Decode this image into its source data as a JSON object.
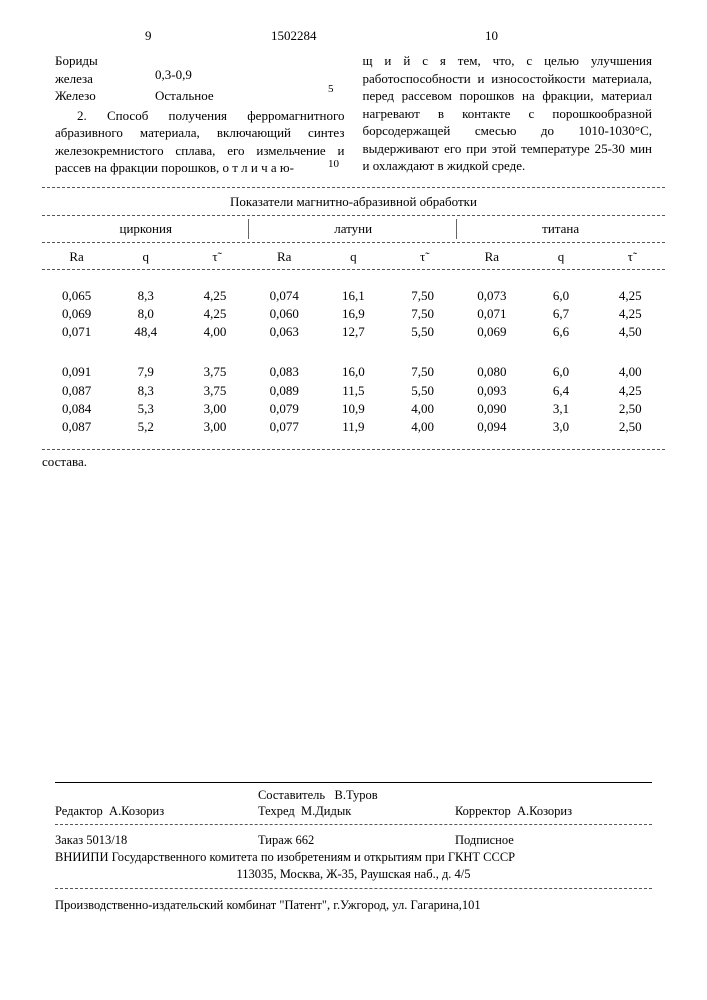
{
  "page": {
    "num_left": "9",
    "doc_number": "1502284",
    "num_right": "10"
  },
  "margin": {
    "n5": "5",
    "n10": "10"
  },
  "left_col": {
    "l1a": "Бориды",
    "l1b": "железа",
    "l1c": "0,3-0,9",
    "l2a": "Железо",
    "l2b": "Остальное",
    "para": "2. Способ получения ферромагнитного абразивного материала, включающий синтез железокремнистого сплава, его измельчение и рассев на фракции порошков, о т л и ч а ю-"
  },
  "right_col": {
    "para": "щ и й с я  тем, что, с целью улучшения работоспособности и износостойкости материала, перед рассевом порошков на фракции, материал нагревают в контакте с порошкообразной борсодержащей смесью до 1010-1030°С, выдерживают его при этой температуре 25-30 мин и охлаждают в жидкой среде."
  },
  "table": {
    "title": "Показатели магнитно-абразивной обработки",
    "groups": [
      "циркония",
      "латуни",
      "титана"
    ],
    "sub": [
      "Ra",
      "q",
      "τ̃",
      "Ra",
      "q",
      "τ̃",
      "Ra",
      "q",
      "τ̃"
    ],
    "rows_a": [
      [
        "0,065",
        "8,3",
        "4,25",
        "0,074",
        "16,1",
        "7,50",
        "0,073",
        "6,0",
        "4,25"
      ],
      [
        "0,069",
        "8,0",
        "4,25",
        "0,060",
        "16,9",
        "7,50",
        "0,071",
        "6,7",
        "4,25"
      ],
      [
        "0,071",
        "48,4",
        "4,00",
        "0,063",
        "12,7",
        "5,50",
        "0,069",
        "6,6",
        "4,50"
      ]
    ],
    "rows_b": [
      [
        "0,091",
        "7,9",
        "3,75",
        "0,083",
        "16,0",
        "7,50",
        "0,080",
        "6,0",
        "4,00"
      ],
      [
        "0,087",
        "8,3",
        "3,75",
        "0,089",
        "11,5",
        "5,50",
        "0,093",
        "6,4",
        "4,25"
      ],
      [
        "0,084",
        "5,3",
        "3,00",
        "0,079",
        "10,9",
        "4,00",
        "0,090",
        "3,1",
        "2,50"
      ],
      [
        "0,087",
        "5,2",
        "3,00",
        "0,077",
        "11,9",
        "4,00",
        "0,094",
        "3,0",
        "2,50"
      ]
    ],
    "footnote": "состава."
  },
  "footer": {
    "compiler_label": "Составитель",
    "compiler_name": "В.Туров",
    "editor_label": "Редактор",
    "editor_name": "А.Козориз",
    "tech_label": "Техред",
    "tech_name": "М.Дидык",
    "corrector_label": "Корректор",
    "corrector_name": "А.Козориз",
    "order": "Заказ 5013/18",
    "tirazh": "Тираж 662",
    "podpisnoe": "Подписное",
    "line1": "ВНИИПИ Государственного комитета по изобретениям и открытиям при ГКНТ СССР",
    "line2": "113035, Москва, Ж-35, Раушская наб., д. 4/5",
    "line3": "Производственно-издательский комбинат \"Патент\", г.Ужгород, ул. Гагарина,101"
  }
}
